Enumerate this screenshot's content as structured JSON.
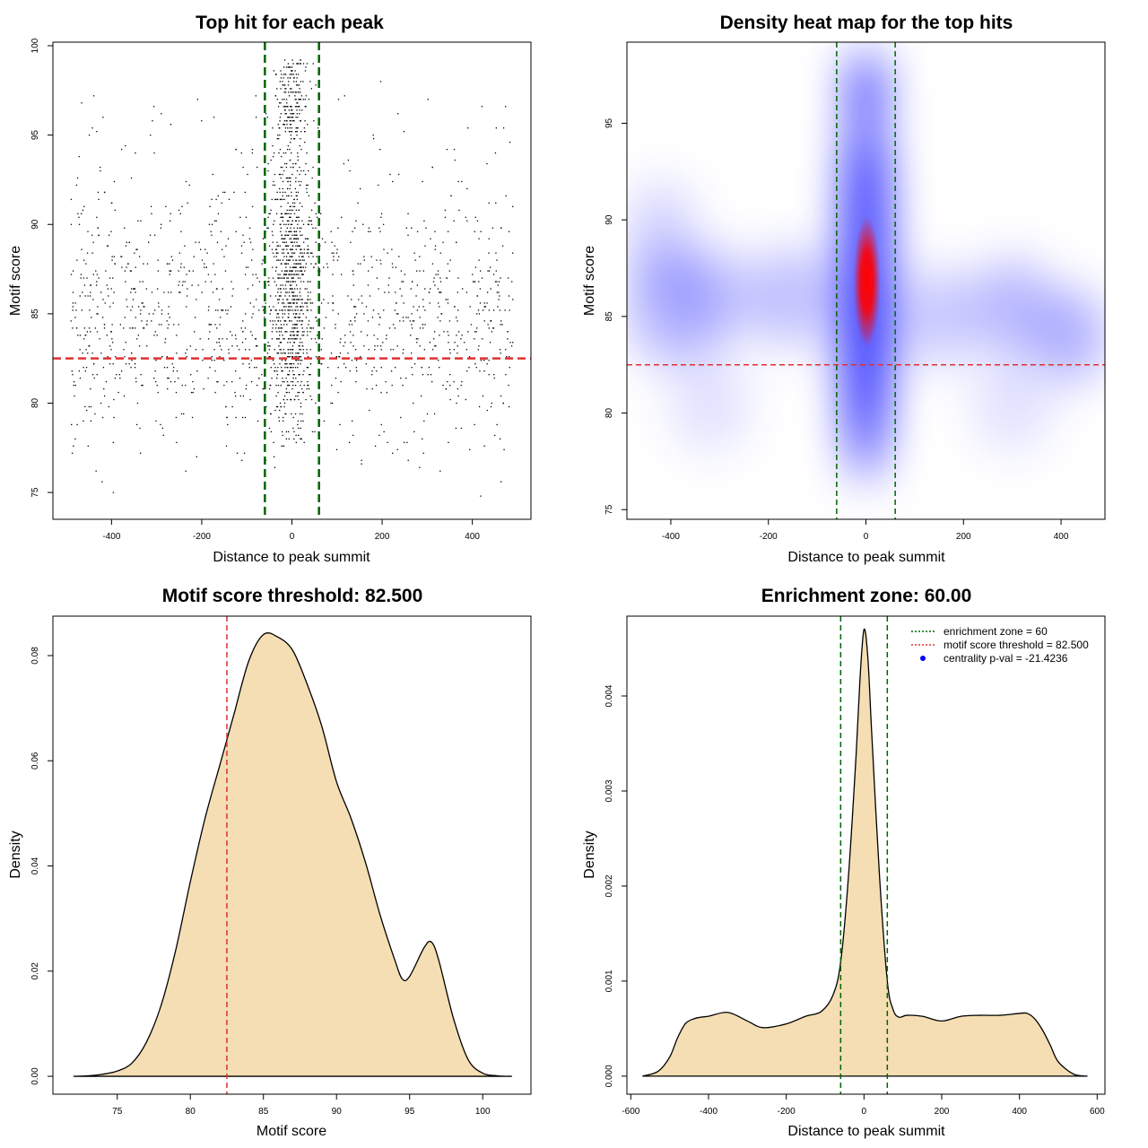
{
  "chart_data": [
    {
      "id": "scatter",
      "type": "scatter",
      "title": "Top hit for each peak",
      "xlabel": "Distance to peak summit",
      "ylabel": "Motif score",
      "xlim": [
        -530,
        530
      ],
      "ylim": [
        73.5,
        100.2
      ],
      "xticks": [
        -400,
        -200,
        0,
        200,
        400
      ],
      "yticks": [
        75,
        80,
        85,
        90,
        95,
        100
      ],
      "reference_lines": {
        "vertical": [
          -60,
          60
        ],
        "vertical_color": "#006400",
        "horizontal": [
          82.5
        ],
        "horizontal_color": "#e03030"
      },
      "point_color": "#000000",
      "approx_points": 2400
    },
    {
      "id": "heatmap",
      "type": "heatmap",
      "title": "Density heat map for the top hits",
      "xlabel": "Distance to peak summit",
      "ylabel": "Motif score",
      "xlim": [
        -490,
        490
      ],
      "ylim": [
        74.5,
        99.2
      ],
      "xticks": [
        -400,
        -200,
        0,
        200,
        400
      ],
      "yticks": [
        75,
        80,
        85,
        90,
        95
      ],
      "reference_lines": {
        "vertical": [
          -60,
          60
        ],
        "vertical_color": "#006400",
        "horizontal": [
          82.5
        ],
        "horizontal_color": "#e03030"
      },
      "colors": {
        "low": "#ffffff",
        "mid": "#0000ff",
        "high": "#ff0000"
      }
    },
    {
      "id": "score-density",
      "type": "area",
      "title": "Motif score threshold: 82.500",
      "xlabel": "Motif score",
      "ylabel": "Density",
      "xlim": [
        70.6,
        103.3
      ],
      "ylim": [
        -0.0034,
        0.0875
      ],
      "xticks": [
        75,
        80,
        85,
        90,
        95,
        100
      ],
      "yticks": [
        0.0,
        0.02,
        0.04,
        0.06,
        0.08
      ],
      "ytick_labels": [
        "0.00",
        "0.02",
        "0.04",
        "0.06",
        "0.08"
      ],
      "fill": "#f5deb3",
      "x": [
        72,
        73,
        74,
        75,
        76,
        77,
        78,
        79,
        80,
        81,
        82,
        82.5,
        83,
        84,
        85,
        86,
        87,
        88,
        89,
        90,
        91,
        92,
        93,
        94,
        94.5,
        95,
        96,
        96.5,
        97,
        98,
        99,
        100,
        101,
        102
      ],
      "y": [
        0.0,
        0.0001,
        0.0004,
        0.001,
        0.0025,
        0.0065,
        0.0135,
        0.024,
        0.037,
        0.049,
        0.059,
        0.064,
        0.069,
        0.079,
        0.084,
        0.0835,
        0.081,
        0.0745,
        0.0665,
        0.056,
        0.049,
        0.0405,
        0.0305,
        0.022,
        0.0185,
        0.019,
        0.0245,
        0.0255,
        0.022,
        0.011,
        0.0032,
        0.0006,
        0.0001,
        0.0
      ],
      "reference_lines": {
        "vertical": [
          82.5
        ],
        "vertical_color": "#e03030"
      }
    },
    {
      "id": "distance-density",
      "type": "area",
      "title": "Enrichment zone: 60.00",
      "xlabel": "Distance to peak summit",
      "ylabel": "Density",
      "xlim": [
        -610,
        620
      ],
      "ylim": [
        -0.00019,
        0.00484
      ],
      "xticks": [
        -600,
        -400,
        -200,
        0,
        200,
        400,
        600
      ],
      "yticks": [
        0.0,
        0.001,
        0.002,
        0.003,
        0.004
      ],
      "ytick_labels": [
        "0.000",
        "0.001",
        "0.002",
        "0.003",
        "0.004"
      ],
      "fill": "#f5deb3",
      "x": [
        -570,
        -530,
        -500,
        -480,
        -460,
        -440,
        -420,
        -400,
        -350,
        -300,
        -260,
        -200,
        -150,
        -110,
        -80,
        -60,
        -40,
        -20,
        -10,
        0,
        10,
        20,
        40,
        60,
        75,
        90,
        110,
        150,
        200,
        250,
        300,
        350,
        400,
        420,
        440,
        460,
        480,
        500,
        540,
        575
      ],
      "y": [
        0.0,
        5e-05,
        0.0002,
        0.0004,
        0.00055,
        0.0006,
        0.00062,
        0.00063,
        0.00067,
        0.00058,
        0.00051,
        0.00055,
        0.00063,
        0.00068,
        0.00085,
        0.0012,
        0.0021,
        0.0034,
        0.0042,
        0.0047,
        0.0044,
        0.0036,
        0.0021,
        0.001,
        0.0007,
        0.00062,
        0.00064,
        0.00063,
        0.00058,
        0.00063,
        0.00064,
        0.00064,
        0.00066,
        0.00066,
        0.0006,
        0.00048,
        0.00032,
        0.00015,
        2e-05,
        0.0
      ],
      "reference_lines": {
        "vertical": [
          -60,
          60
        ],
        "vertical_color": "#006400"
      },
      "legend": {
        "position": "top-right",
        "entries": [
          {
            "label": "enrichment zone = 60",
            "color": "#006400",
            "style": "dotted-line"
          },
          {
            "label": "motif score threshold = 82.500",
            "color": "#e03030",
            "style": "dotted-line"
          },
          {
            "label": "centrality p-val = -21.4236",
            "color": "#0000ff",
            "style": "dot"
          }
        ]
      }
    }
  ]
}
